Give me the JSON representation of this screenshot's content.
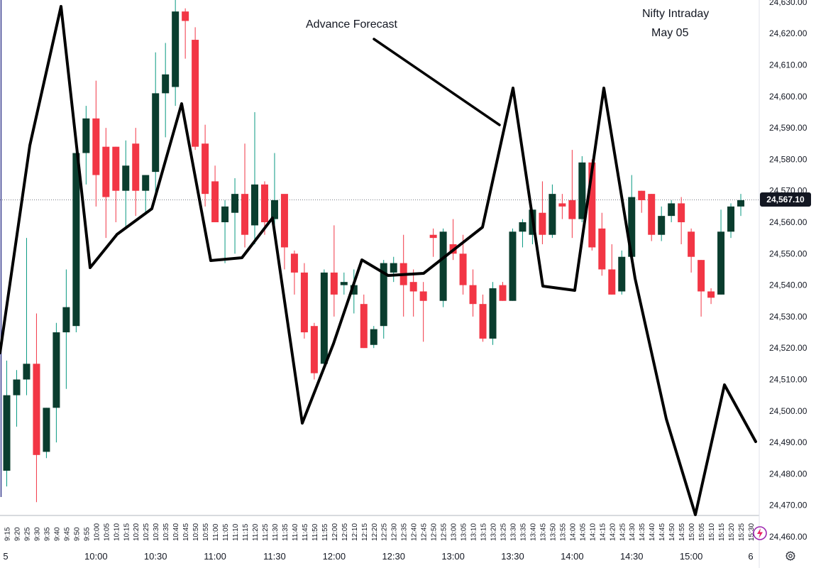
{
  "annotations": {
    "forecast_label": "Advance Forecast",
    "title": "Nifty Intraday",
    "date": "May 05"
  },
  "last_price_label": "24,567.10",
  "colors": {
    "up": "#0a3d2e",
    "down": "#f23645",
    "forecast": "#000000",
    "wick_up": "#089981",
    "wick_down": "#f23645"
  },
  "icons": [
    "gear-icon",
    "lightning-icon"
  ],
  "chart_data": {
    "type": "candlestick",
    "ylim": [
      24455,
      24630
    ],
    "y_ticks": [
      24460,
      24470,
      24480,
      24490,
      24500,
      24510,
      24520,
      24530,
      24540,
      24550,
      24560,
      24570,
      24580,
      24590,
      24600,
      24610,
      24620,
      24630
    ],
    "y_tick_labels": [
      "24,460.00",
      "24,470.00",
      "24,480.00",
      "24,490.00",
      "24,500.00",
      "24,510.00",
      "24,520.00",
      "24,530.00",
      "24,540.00",
      "24,550.00",
      "24,560.00",
      "24,570.00",
      "24,580.00",
      "24,590.00",
      "24,600.00",
      "24,610.00",
      "24,620.00",
      "24,630.00"
    ],
    "last_price": 24567.1,
    "x_labels_minor": [
      "9:15",
      "9:20",
      "9:25",
      "9:30",
      "9:35",
      "9:40",
      "9:45",
      "9:50",
      "9:55",
      "10:00",
      "10:05",
      "10:10",
      "10:15",
      "10:20",
      "10:25",
      "10:30",
      "10:35",
      "10:40",
      "10:45",
      "10:50",
      "10:55",
      "11:00",
      "11:05",
      "11:10",
      "11:15",
      "11:20",
      "11:25",
      "11:30",
      "11:35",
      "11:40",
      "11:45",
      "11:50",
      "11:55",
      "12:00",
      "12:05",
      "12:10",
      "12:15",
      "12:20",
      "12:25",
      "12:30",
      "12:35",
      "12:40",
      "12:45",
      "12:50",
      "12:55",
      "13:00",
      "13:05",
      "13:10",
      "13:15",
      "13:20",
      "13:25",
      "13:30",
      "13:35",
      "13:40",
      "13:45",
      "13:50",
      "13:55",
      "14:00",
      "14:05",
      "14:10",
      "14:15",
      "14:20",
      "14:25",
      "14:30",
      "14:35",
      "14:40",
      "14:45",
      "14:50",
      "14:55",
      "15:00",
      "15:05",
      "15:10",
      "15:15",
      "15:20",
      "15:25",
      "15:30"
    ],
    "x_labels_major": [
      {
        "index": -1,
        "label": "5"
      },
      {
        "index": 9,
        "label": "10:00"
      },
      {
        "index": 15,
        "label": "10:30"
      },
      {
        "index": 21,
        "label": "11:00"
      },
      {
        "index": 27,
        "label": "11:30"
      },
      {
        "index": 33,
        "label": "12:00"
      },
      {
        "index": 39,
        "label": "12:30"
      },
      {
        "index": 45,
        "label": "13:00"
      },
      {
        "index": 51,
        "label": "13:30"
      },
      {
        "index": 57,
        "label": "14:00"
      },
      {
        "index": 63,
        "label": "14:30"
      },
      {
        "index": 69,
        "label": "15:00"
      },
      {
        "index": 75,
        "label": "6"
      }
    ],
    "candles": [
      {
        "o": 24481,
        "h": 24516,
        "l": 24476,
        "c": 24505
      },
      {
        "o": 24505,
        "h": 24513,
        "l": 24495,
        "c": 24510
      },
      {
        "o": 24510,
        "h": 24555,
        "l": 24505,
        "c": 24515
      },
      {
        "o": 24515,
        "h": 24531,
        "l": 24471,
        "c": 24486
      },
      {
        "o": 24487,
        "h": 24501,
        "l": 24485,
        "c": 24501
      },
      {
        "o": 24501,
        "h": 24528,
        "l": 24490,
        "c": 24525
      },
      {
        "o": 24525,
        "h": 24545,
        "l": 24507,
        "c": 24533
      },
      {
        "o": 24527,
        "h": 24585,
        "l": 24525,
        "c": 24582
      },
      {
        "o": 24582,
        "h": 24597,
        "l": 24572,
        "c": 24593
      },
      {
        "o": 24593,
        "h": 24605,
        "l": 24565,
        "c": 24575
      },
      {
        "o": 24584,
        "h": 24590,
        "l": 24555,
        "c": 24568
      },
      {
        "o": 24584,
        "h": 24584,
        "l": 24560,
        "c": 24570
      },
      {
        "o": 24570,
        "h": 24586,
        "l": 24558,
        "c": 24578
      },
      {
        "o": 24585,
        "h": 24590,
        "l": 24562,
        "c": 24570
      },
      {
        "o": 24570,
        "h": 24575,
        "l": 24563,
        "c": 24575
      },
      {
        "o": 24576,
        "h": 24614,
        "l": 24568,
        "c": 24601
      },
      {
        "o": 24601,
        "h": 24617,
        "l": 24587,
        "c": 24607
      },
      {
        "o": 24603,
        "h": 24632,
        "l": 24597,
        "c": 24627
      },
      {
        "o": 24627,
        "h": 24628,
        "l": 24612,
        "c": 24624
      },
      {
        "o": 24618,
        "h": 24622,
        "l": 24583,
        "c": 24584
      },
      {
        "o": 24585,
        "h": 24591,
        "l": 24565,
        "c": 24569
      },
      {
        "o": 24573,
        "h": 24578,
        "l": 24561,
        "c": 24560
      },
      {
        "o": 24560,
        "h": 24567,
        "l": 24547,
        "c": 24565
      },
      {
        "o": 24563,
        "h": 24574,
        "l": 24550,
        "c": 24569
      },
      {
        "o": 24569,
        "h": 24585,
        "l": 24552,
        "c": 24556
      },
      {
        "o": 24559,
        "h": 24595,
        "l": 24553,
        "c": 24572
      },
      {
        "o": 24572,
        "h": 24573,
        "l": 24556,
        "c": 24560
      },
      {
        "o": 24561,
        "h": 24582,
        "l": 24558,
        "c": 24567
      },
      {
        "o": 24569,
        "h": 24568,
        "l": 24545,
        "c": 24552
      },
      {
        "o": 24550,
        "h": 24551,
        "l": 24537,
        "c": 24544
      },
      {
        "o": 24544,
        "h": 24547,
        "l": 24523,
        "c": 24525
      },
      {
        "o": 24527,
        "h": 24528,
        "l": 24510,
        "c": 24512
      },
      {
        "o": 24515,
        "h": 24545,
        "l": 24513,
        "c": 24544
      },
      {
        "o": 24544,
        "h": 24559,
        "l": 24530,
        "c": 24537
      },
      {
        "o": 24540,
        "h": 24544,
        "l": 24537,
        "c": 24541
      },
      {
        "o": 24537,
        "h": 24545,
        "l": 24531,
        "c": 24540
      },
      {
        "o": 24534,
        "h": 24537,
        "l": 24520,
        "c": 24520
      },
      {
        "o": 24521,
        "h": 24527,
        "l": 24520,
        "c": 24526
      },
      {
        "o": 24527,
        "h": 24548,
        "l": 24523,
        "c": 24547
      },
      {
        "o": 24544,
        "h": 24549,
        "l": 24541,
        "c": 24547
      },
      {
        "o": 24547,
        "h": 24556,
        "l": 24530,
        "c": 24540
      },
      {
        "o": 24541,
        "h": 24545,
        "l": 24530,
        "c": 24538
      },
      {
        "o": 24538,
        "h": 24541,
        "l": 24522,
        "c": 24535
      },
      {
        "o": 24556,
        "h": 24558,
        "l": 24549,
        "c": 24555
      },
      {
        "o": 24535,
        "h": 24558,
        "l": 24533,
        "c": 24557
      },
      {
        "o": 24553,
        "h": 24561,
        "l": 24548,
        "c": 24550
      },
      {
        "o": 24550,
        "h": 24556,
        "l": 24537,
        "c": 24540
      },
      {
        "o": 24540,
        "h": 24545,
        "l": 24530,
        "c": 24534
      },
      {
        "o": 24534,
        "h": 24537,
        "l": 24522,
        "c": 24523
      },
      {
        "o": 24523,
        "h": 24541,
        "l": 24521,
        "c": 24539
      },
      {
        "o": 24540,
        "h": 24541,
        "l": 24535,
        "c": 24535
      },
      {
        "o": 24535,
        "h": 24558,
        "l": 24535,
        "c": 24557
      },
      {
        "o": 24557,
        "h": 24561,
        "l": 24552,
        "c": 24560
      },
      {
        "o": 24556,
        "h": 24564,
        "l": 24553,
        "c": 24564
      },
      {
        "o": 24563,
        "h": 24573,
        "l": 24553,
        "c": 24556
      },
      {
        "o": 24556,
        "h": 24572,
        "l": 24555,
        "c": 24569
      },
      {
        "o": 24566,
        "h": 24569,
        "l": 24561,
        "c": 24565
      },
      {
        "o": 24567,
        "h": 24583,
        "l": 24555,
        "c": 24561
      },
      {
        "o": 24561,
        "h": 24581,
        "l": 24560,
        "c": 24579
      },
      {
        "o": 24579,
        "h": 24580,
        "l": 24551,
        "c": 24552
      },
      {
        "o": 24558,
        "h": 24563,
        "l": 24543,
        "c": 24545
      },
      {
        "o": 24545,
        "h": 24553,
        "l": 24537,
        "c": 24537
      },
      {
        "o": 24538,
        "h": 24551,
        "l": 24537,
        "c": 24549
      },
      {
        "o": 24549,
        "h": 24575,
        "l": 24548,
        "c": 24568
      },
      {
        "o": 24570,
        "h": 24570,
        "l": 24563,
        "c": 24567
      },
      {
        "o": 24569,
        "h": 24569,
        "l": 24554,
        "c": 24556
      },
      {
        "o": 24556,
        "h": 24565,
        "l": 24554,
        "c": 24562
      },
      {
        "o": 24562,
        "h": 24567,
        "l": 24560,
        "c": 24566
      },
      {
        "o": 24566,
        "h": 24568,
        "l": 24553,
        "c": 24560
      },
      {
        "o": 24557,
        "h": 24558,
        "l": 24544,
        "c": 24549
      },
      {
        "o": 24548,
        "h": 24548,
        "l": 24530,
        "c": 24538
      },
      {
        "o": 24538,
        "h": 24539,
        "l": 24534,
        "c": 24536
      },
      {
        "o": 24537,
        "h": 24564,
        "l": 24537,
        "c": 24557
      },
      {
        "o": 24557,
        "h": 24566,
        "l": 24555,
        "c": 24565
      },
      {
        "o": 24565,
        "h": 24569,
        "l": 24562,
        "c": 24567
      }
    ],
    "forecast": [
      {
        "t": -1,
        "y": 24517
      },
      {
        "t": 1,
        "y": 24550
      },
      {
        "t": 5,
        "y": 24628
      },
      {
        "t": 7,
        "y": 24545
      },
      {
        "t": 9,
        "y": 24555
      },
      {
        "t": 12,
        "y": 24564
      },
      {
        "t": 14,
        "y": 24596
      },
      {
        "t": 17,
        "y": 24543
      },
      {
        "t": 20,
        "y": 24542
      },
      {
        "t": 23,
        "y": 24561
      },
      {
        "t": 25,
        "y": 24496
      },
      {
        "t": 27,
        "y": 24536
      },
      {
        "t": 29,
        "y": 24547
      },
      {
        "t": 32,
        "y": 24538
      },
      {
        "t": 35,
        "y": 24541
      },
      {
        "t": 38,
        "y": 24549
      },
      {
        "t": 40,
        "y": 24558
      },
      {
        "t": 42,
        "y": 24602
      },
      {
        "t": 44,
        "y": 24538
      },
      {
        "t": 47,
        "y": 24538
      },
      {
        "t": 49,
        "y": 24602
      },
      {
        "t": 51,
        "y": 24538
      },
      {
        "t": 55,
        "y": 24498
      },
      {
        "t": 57,
        "y": 24468
      },
      {
        "t": 59,
        "y": 24508
      },
      {
        "t": 61,
        "y": 24491
      }
    ],
    "forecast_extra": [
      {
        "t": 0.8,
        "y": 24517
      },
      {
        "t": 2.8,
        "y": 24588
      },
      {
        "t": 4.8,
        "y": 24628
      },
      {
        "t": 6.5,
        "y": 24545
      },
      {
        "t": 8.6,
        "y": 24558
      },
      {
        "t": 11.0,
        "y": 24565
      },
      {
        "t": 13.8,
        "y": 24597
      },
      {
        "t": 16.1,
        "y": 24548
      },
      {
        "t": 18.6,
        "y": 24548
      },
      {
        "t": 21.0,
        "y": 24563
      },
      {
        "t": 22.6,
        "y": 24497
      },
      {
        "t": 25.0,
        "y": 24538
      },
      {
        "t": 26.6,
        "y": 24548
      },
      {
        "t": 28.6,
        "y": 24541
      },
      {
        "t": 30.6,
        "y": 24541
      },
      {
        "t": 32.6,
        "y": 24549
      },
      {
        "t": 35.0,
        "y": 24558
      },
      {
        "t": 36.6,
        "y": 24601
      },
      {
        "t": 38.6,
        "y": 24539
      },
      {
        "t": 41.0,
        "y": 24538
      },
      {
        "t": 42.6,
        "y": 24601
      },
      {
        "t": 44.6,
        "y": 24538
      },
      {
        "t": 46.6,
        "y": 24498
      },
      {
        "t": 48.6,
        "y": 24468
      },
      {
        "t": 50.6,
        "y": 24508
      },
      {
        "t": 52.6,
        "y": 24490
      }
    ],
    "forecast_line_2": [
      {
        "x": 524,
        "y": 24624
      },
      {
        "x": 704,
        "y": 24592
      }
    ]
  }
}
